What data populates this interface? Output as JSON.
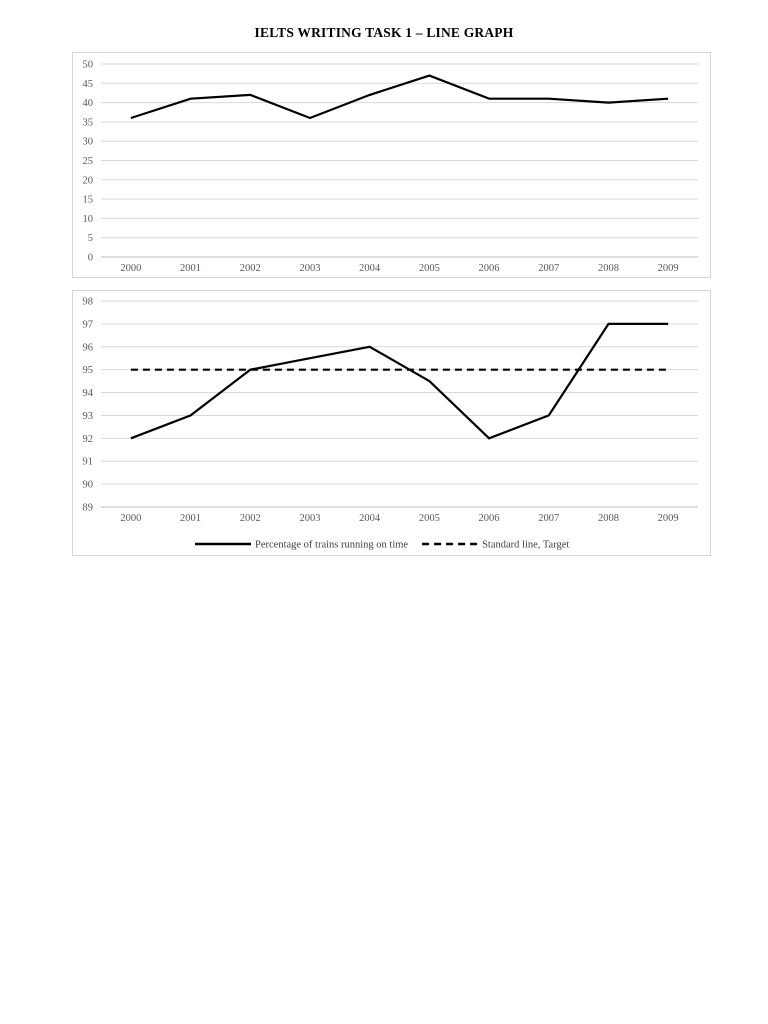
{
  "document": {
    "title": "IELTS WRITING TASK 1 – LINE GRAPH"
  },
  "chart_data": [
    {
      "type": "line",
      "title": "",
      "xlabel": "",
      "ylabel": "",
      "categories": [
        "2000",
        "2001",
        "2002",
        "2003",
        "2004",
        "2005",
        "2006",
        "2007",
        "2008",
        "2009"
      ],
      "yticks": [
        0,
        5,
        10,
        15,
        20,
        25,
        30,
        35,
        40,
        45,
        50
      ],
      "ylim": [
        0,
        50
      ],
      "grid": true,
      "legend": "none",
      "series": [
        {
          "values": [
            36,
            41,
            42,
            36,
            42,
            47,
            41,
            41,
            40,
            41
          ],
          "style": "solid",
          "color": "#000000"
        }
      ]
    },
    {
      "type": "line",
      "title": "",
      "xlabel": "",
      "ylabel": "",
      "categories": [
        "2000",
        "2001",
        "2002",
        "2003",
        "2004",
        "2005",
        "2006",
        "2007",
        "2008",
        "2009"
      ],
      "yticks": [
        89,
        90,
        91,
        92,
        93,
        94,
        95,
        96,
        97,
        98
      ],
      "ylim": [
        89,
        98
      ],
      "grid": true,
      "legend": "bottom",
      "series": [
        {
          "name": "Percentage of trains running on time",
          "values": [
            92,
            93,
            95,
            95.5,
            96,
            94.5,
            92,
            93,
            97,
            97
          ],
          "style": "solid",
          "color": "#000000"
        },
        {
          "name": "Standard line, Target",
          "values": [
            95,
            95,
            95,
            95,
            95,
            95,
            95,
            95,
            95,
            95
          ],
          "style": "dashed",
          "color": "#000000"
        }
      ]
    }
  ]
}
